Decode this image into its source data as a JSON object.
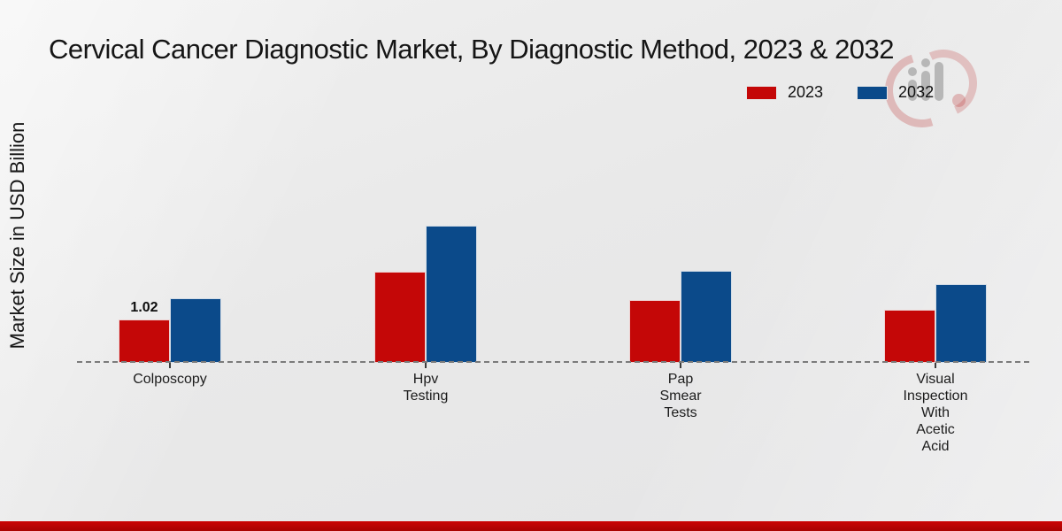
{
  "title": "Cervical Cancer Diagnostic Market, By Diagnostic Method, 2023 & 2032",
  "ylabel": "Market Size in USD Billion",
  "legend": [
    {
      "label": "2023",
      "color": "#c40707"
    },
    {
      "label": "2032",
      "color": "#0b4a8a"
    }
  ],
  "colors": {
    "bar_2023": "#c40707",
    "bar_2032": "#0b4a8a",
    "baseline": "#7b7b7b",
    "footer_strip": "#c50404",
    "background": "#e9e9e9"
  },
  "watermark_icon": "market-research-logo-watermark",
  "chart_data": {
    "type": "bar",
    "title": "Cervical Cancer Diagnostic Market, By Diagnostic Method, 2023 & 2032",
    "xlabel": "",
    "ylabel": "Market Size in USD Billion",
    "categories": [
      "Colposcopy",
      "Hpv Testing",
      "Pap Smear Tests",
      "Visual Inspection With Acetic Acid"
    ],
    "category_lines": [
      [
        "Colposcopy"
      ],
      [
        "Hpv",
        "Testing"
      ],
      [
        "Pap",
        "Smear",
        "Tests"
      ],
      [
        "Visual",
        "Inspection",
        "With",
        "Acetic",
        "Acid"
      ]
    ],
    "series": [
      {
        "name": "2023",
        "color": "#c40707",
        "values": [
          1.02,
          2.16,
          1.48,
          1.26
        ],
        "data_labels": [
          "1.02",
          "",
          "",
          ""
        ]
      },
      {
        "name": "2032",
        "color": "#0b4a8a",
        "values": [
          1.53,
          3.24,
          2.18,
          1.87
        ],
        "data_labels": [
          "",
          "",
          "",
          ""
        ]
      }
    ],
    "ylim": [
      0,
      3.5
    ],
    "grid": false,
    "baseline_style": "dashed",
    "legend_position": "top-right",
    "units": "USD Billion"
  }
}
